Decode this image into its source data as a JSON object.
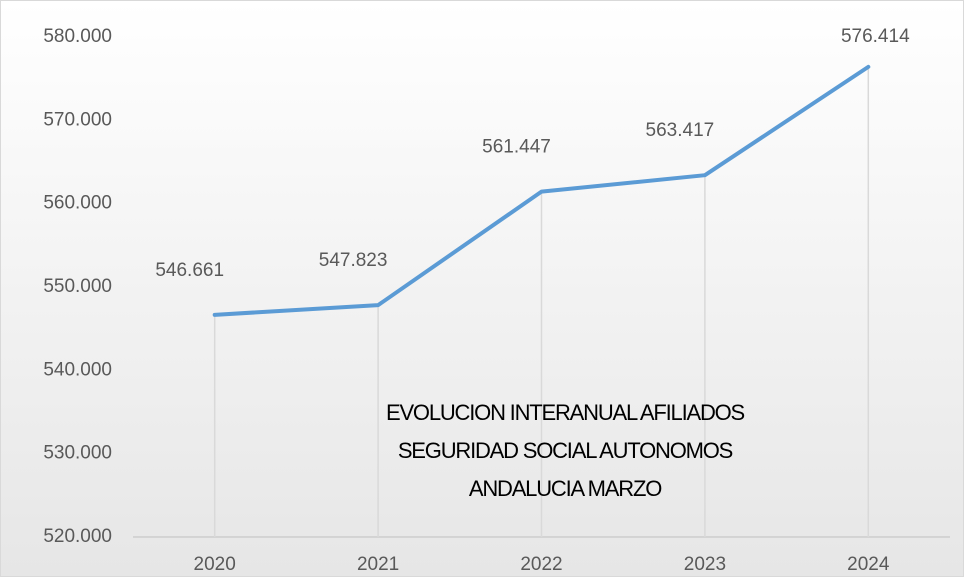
{
  "chart_data": {
    "type": "line",
    "title": [
      "EVOLUCION INTERANUAL AFILIADOS",
      "SEGURIDAD SOCIAL AUTONOMOS",
      "ANDALUCIA  MARZO"
    ],
    "categories": [
      "2020",
      "2021",
      "2022",
      "2023",
      "2024"
    ],
    "series": [
      {
        "color": "#5b9bd5",
        "values": [
          546661,
          547823,
          561447,
          563417,
          576414
        ],
        "value_labels": [
          "546.661",
          "547.823",
          "561.447",
          "563.417",
          "576.414"
        ]
      }
    ],
    "ylim": [
      520000,
      580000
    ],
    "yticks": [
      {
        "value": 520000,
        "label": "520.000"
      },
      {
        "value": 530000,
        "label": "530.000"
      },
      {
        "value": 540000,
        "label": "540.000"
      },
      {
        "value": 550000,
        "label": "550.000"
      },
      {
        "value": 560000,
        "label": "560.000"
      },
      {
        "value": 570000,
        "label": "570.000"
      },
      {
        "value": 580000,
        "label": "580.000"
      }
    ],
    "grid": false
  }
}
